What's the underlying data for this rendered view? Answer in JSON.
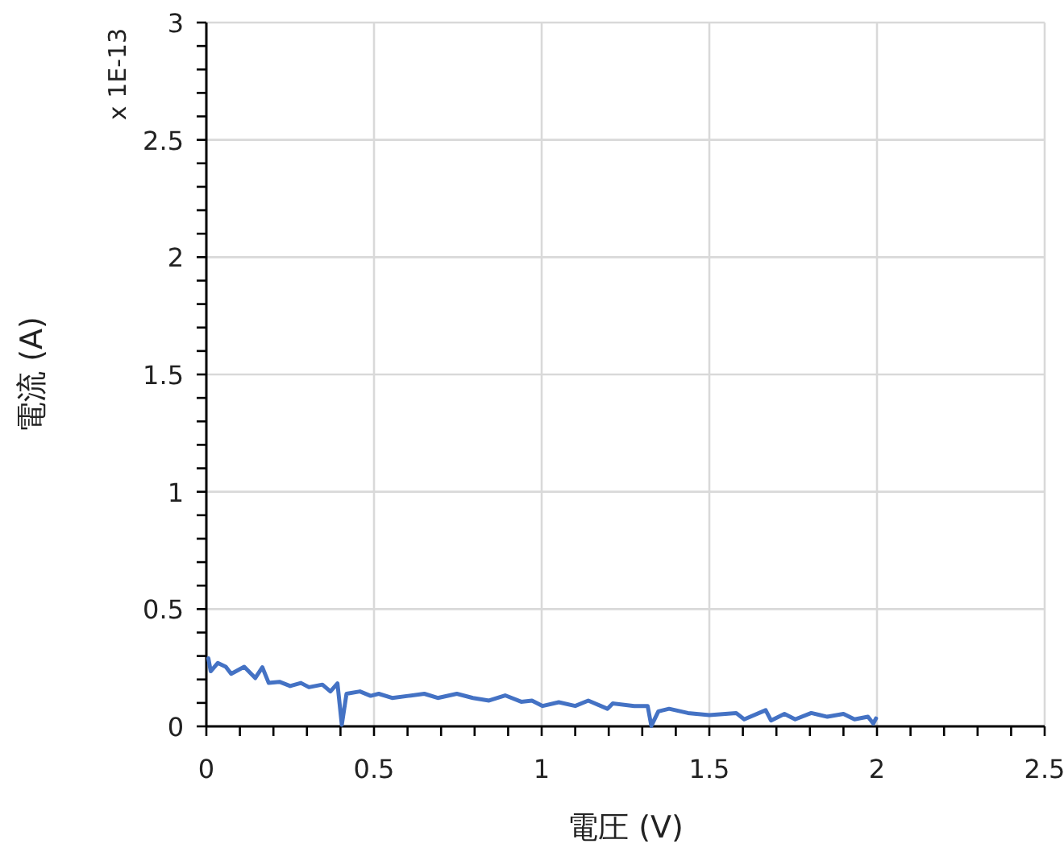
{
  "chart_data": {
    "type": "line",
    "xlabel": "電圧 (V)",
    "ylabel": "電流 (A)",
    "annotations": [
      "x 1E-13"
    ],
    "x": [
      0.006,
      0.013,
      0.034,
      0.058,
      0.074,
      0.113,
      0.146,
      0.167,
      0.186,
      0.218,
      0.25,
      0.282,
      0.306,
      0.346,
      0.37,
      0.391,
      0.404,
      0.418,
      0.458,
      0.49,
      0.514,
      0.554,
      0.602,
      0.65,
      0.69,
      0.747,
      0.795,
      0.843,
      0.891,
      0.939,
      0.971,
      1.003,
      1.051,
      1.1,
      1.139,
      1.196,
      1.212,
      1.276,
      1.316,
      1.327,
      1.348,
      1.38,
      1.436,
      1.5,
      1.58,
      1.604,
      1.668,
      1.684,
      1.724,
      1.756,
      1.804,
      1.852,
      1.9,
      1.933,
      1.973,
      1.989,
      1.997
    ],
    "series": [
      {
        "color": "#4472c4",
        "values": [
          0.29,
          0.235,
          0.27,
          0.254,
          0.224,
          0.254,
          0.206,
          0.252,
          0.185,
          0.19,
          0.172,
          0.185,
          0.167,
          0.178,
          0.149,
          0.183,
          0.007,
          0.139,
          0.149,
          0.13,
          0.139,
          0.121,
          0.13,
          0.139,
          0.121,
          0.139,
          0.121,
          0.11,
          0.132,
          0.105,
          0.11,
          0.087,
          0.103,
          0.087,
          0.11,
          0.075,
          0.098,
          0.087,
          0.087,
          0.002,
          0.064,
          0.075,
          0.057,
          0.048,
          0.057,
          0.03,
          0.069,
          0.025,
          0.053,
          0.03,
          0.057,
          0.041,
          0.053,
          0.03,
          0.041,
          0.012,
          0.034
        ]
      }
    ],
    "xlim": [
      0,
      2.5
    ],
    "xticks": [
      0,
      {
        "value": 0.1,
        "label": null
      },
      {
        "value": 0.2,
        "label": null
      },
      {
        "value": 0.3,
        "label": null
      },
      {
        "value": 0.4,
        "label": null
      },
      0.5,
      {
        "value": 0.6,
        "label": null
      },
      {
        "value": 0.7,
        "label": null
      },
      {
        "value": 0.8,
        "label": null
      },
      {
        "value": 0.9,
        "label": null
      },
      1,
      {
        "value": 1.1,
        "label": null
      },
      {
        "value": 1.2,
        "label": null
      },
      {
        "value": 1.3,
        "label": null
      },
      {
        "value": 1.4,
        "label": null
      },
      1.5,
      {
        "value": 1.6,
        "label": null
      },
      {
        "value": 1.7,
        "label": null
      },
      {
        "value": 1.8,
        "label": null
      },
      {
        "value": 1.9,
        "label": null
      },
      2,
      {
        "value": 2.1,
        "label": null
      },
      {
        "value": 2.2,
        "label": null
      },
      {
        "value": 2.3,
        "label": null
      },
      {
        "value": 2.4,
        "label": null
      },
      2.5
    ],
    "ylim": [
      0,
      3
    ],
    "yticks": [
      0,
      {
        "value": 0.1,
        "label": null
      },
      {
        "value": 0.2,
        "label": null
      },
      {
        "value": 0.3,
        "label": null
      },
      {
        "value": 0.4,
        "label": null
      },
      0.5,
      {
        "value": 0.6,
        "label": null
      },
      {
        "value": 0.7,
        "label": null
      },
      {
        "value": 0.8,
        "label": null
      },
      {
        "value": 0.9,
        "label": null
      },
      1,
      {
        "value": 1.1,
        "label": null
      },
      {
        "value": 1.2,
        "label": null
      },
      {
        "value": 1.3,
        "label": null
      },
      {
        "value": 1.4,
        "label": null
      },
      1.5,
      {
        "value": 1.6,
        "label": null
      },
      {
        "value": 1.7,
        "label": null
      },
      {
        "value": 1.8,
        "label": null
      },
      {
        "value": 1.9,
        "label": null
      },
      2,
      {
        "value": 2.1,
        "label": null
      },
      {
        "value": 2.2,
        "label": null
      },
      {
        "value": 2.3,
        "label": null
      },
      {
        "value": 2.4,
        "label": null
      },
      2.5,
      {
        "value": 2.6,
        "label": null
      },
      {
        "value": 2.7,
        "label": null
      },
      {
        "value": 2.8,
        "label": null
      },
      {
        "value": 2.9,
        "label": null
      },
      3
    ],
    "grid": true,
    "marker": "none",
    "line_style": "solid"
  }
}
